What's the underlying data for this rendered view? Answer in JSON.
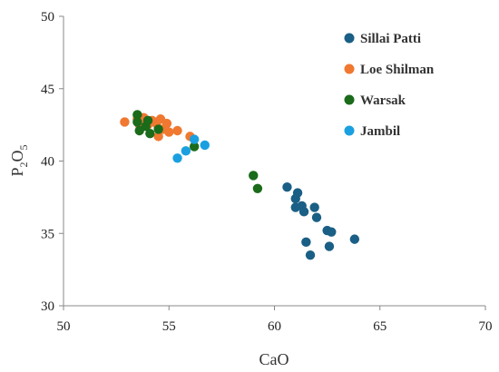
{
  "chart_data": {
    "type": "scatter",
    "xlabel": "CaO",
    "ylabel_main": "P",
    "ylabel_sub1": "2",
    "ylabel_mid": "O",
    "ylabel_sub2": "5",
    "xlim": [
      50,
      70
    ],
    "ylim": [
      30,
      50
    ],
    "xticks": [
      "50",
      "55",
      "60",
      "65",
      "70"
    ],
    "yticks": [
      "30",
      "35",
      "40",
      "45",
      "50"
    ],
    "grid": false,
    "legend_position": "top-right",
    "series": [
      {
        "name": "Sillai Patti",
        "color": "#1a5f85",
        "points": [
          [
            60.6,
            38.2
          ],
          [
            61.0,
            37.4
          ],
          [
            61.1,
            37.8
          ],
          [
            61.3,
            36.9
          ],
          [
            61.0,
            36.8
          ],
          [
            61.4,
            36.5
          ],
          [
            61.9,
            36.8
          ],
          [
            62.0,
            36.1
          ],
          [
            62.5,
            35.2
          ],
          [
            62.7,
            35.1
          ],
          [
            61.5,
            34.4
          ],
          [
            62.6,
            34.1
          ],
          [
            63.8,
            34.6
          ],
          [
            61.7,
            33.5
          ]
        ]
      },
      {
        "name": "Loe Shilman",
        "color": "#f07830",
        "points": [
          [
            52.9,
            42.7
          ],
          [
            53.5,
            42.9
          ],
          [
            53.8,
            43.0
          ],
          [
            54.0,
            42.5
          ],
          [
            54.2,
            42.8
          ],
          [
            54.4,
            42.6
          ],
          [
            54.6,
            42.9
          ],
          [
            54.7,
            42.2
          ],
          [
            54.9,
            42.6
          ],
          [
            55.0,
            42.0
          ],
          [
            54.5,
            41.7
          ],
          [
            55.4,
            42.1
          ],
          [
            56.0,
            41.7
          ],
          [
            53.6,
            42.5
          ]
        ]
      },
      {
        "name": "Warsak",
        "color": "#1a6b1a",
        "points": [
          [
            53.5,
            43.2
          ],
          [
            53.5,
            42.7
          ],
          [
            53.6,
            42.1
          ],
          [
            53.9,
            42.4
          ],
          [
            54.0,
            42.8
          ],
          [
            54.1,
            41.9
          ],
          [
            54.5,
            42.2
          ],
          [
            56.2,
            41.0
          ],
          [
            59.0,
            39.0
          ],
          [
            59.2,
            38.1
          ]
        ]
      },
      {
        "name": "Jambil",
        "color": "#1aa0e0",
        "points": [
          [
            55.4,
            40.2
          ],
          [
            55.8,
            40.7
          ],
          [
            56.2,
            41.5
          ],
          [
            56.7,
            41.1
          ]
        ]
      }
    ]
  }
}
